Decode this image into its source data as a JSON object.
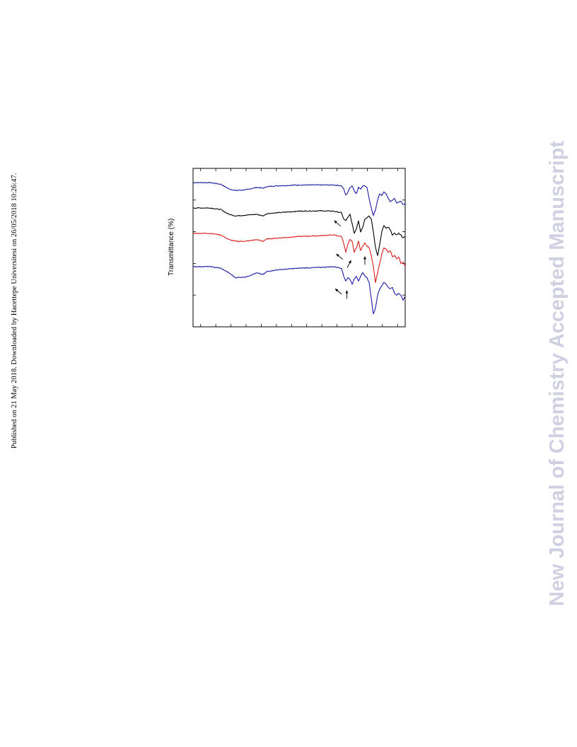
{
  "side_note": "Published on 21 May 2018. Downloaded by Hacettepe Universitesi on 26/05/2018 10:26:47.",
  "watermark": "New Journal of Chemistry Accepted Manuscript",
  "chart_data": {
    "type": "line",
    "title": "",
    "xlabel": "",
    "ylabel": "Transmittance (%)",
    "x_range": [
      0,
      100
    ],
    "y_range": [
      0,
      100
    ],
    "x_tick_count": 14,
    "y_tick_count": 5,
    "grid": false,
    "legend": "none",
    "series": [
      {
        "color": "#1a1aa6",
        "x": [
          0,
          8,
          13,
          17,
          20,
          25,
          30,
          33,
          35,
          40,
          50,
          60,
          66,
          68,
          70,
          71,
          72,
          73,
          74,
          75,
          76,
          77,
          78,
          79,
          80,
          81,
          82,
          83,
          84,
          85,
          86,
          87,
          88,
          89,
          90,
          91,
          92,
          93,
          94,
          95,
          96,
          97,
          98,
          99,
          100
        ],
        "y": [
          91,
          91,
          90,
          87,
          86,
          86.5,
          88,
          87.5,
          88.5,
          89,
          89.5,
          89.5,
          89.5,
          89.3,
          89,
          87,
          83,
          85,
          88,
          89,
          86,
          84,
          88,
          87,
          89,
          89,
          88,
          81,
          75,
          70,
          74,
          80,
          84,
          83,
          85,
          84,
          81,
          79,
          80,
          81,
          78,
          79,
          79,
          77,
          78
        ]
      },
      {
        "color": "#000000",
        "x": [
          0,
          8,
          13,
          17,
          20,
          25,
          30,
          33,
          35,
          40,
          50,
          60,
          66,
          68,
          70,
          71,
          72,
          73,
          74,
          75,
          76,
          77,
          78,
          79,
          80,
          81,
          82,
          83,
          84,
          85,
          86,
          87,
          88,
          89,
          90,
          91,
          92,
          93,
          94,
          95,
          96,
          97,
          98,
          99,
          100
        ],
        "y": [
          75,
          75,
          74,
          71,
          70,
          70.5,
          71,
          70,
          71.5,
          72,
          73,
          73.2,
          73,
          72.5,
          72,
          68,
          67,
          69,
          71,
          65,
          59,
          62,
          67,
          60,
          63,
          68,
          69,
          70,
          68,
          60,
          50,
          45,
          52,
          60,
          64,
          62,
          63,
          61,
          58,
          59,
          58,
          59,
          58,
          56,
          57
        ]
      },
      {
        "color": "#dd1a1a",
        "x": [
          0,
          8,
          13,
          17,
          20,
          25,
          30,
          33,
          35,
          40,
          50,
          60,
          66,
          68,
          70,
          71,
          72,
          73,
          74,
          75,
          76,
          77,
          78,
          79,
          80,
          81,
          82,
          83,
          84,
          85,
          86,
          87,
          88,
          89,
          90,
          91,
          92,
          93,
          94,
          95,
          96,
          97,
          98,
          99,
          100
        ],
        "y": [
          59,
          59,
          58,
          55,
          54,
          54,
          55,
          54,
          55.5,
          56,
          57,
          57.5,
          58,
          57.5,
          57,
          53,
          47,
          52,
          55,
          54,
          47,
          50,
          54,
          48,
          51,
          53,
          51,
          50,
          45,
          38,
          28,
          34,
          40,
          46,
          50,
          49,
          47,
          48,
          44,
          45,
          43,
          44,
          40,
          41,
          38
        ]
      },
      {
        "color": "#1a1aa6",
        "x": [
          0,
          8,
          13,
          17,
          20,
          25,
          30,
          33,
          35,
          40,
          50,
          60,
          66,
          68,
          70,
          71,
          72,
          73,
          74,
          75,
          76,
          77,
          78,
          79,
          80,
          81,
          82,
          83,
          84,
          85,
          86,
          87,
          88,
          89,
          90,
          91,
          92,
          93,
          94,
          95,
          96,
          97,
          98,
          99,
          100
        ],
        "y": [
          38,
          38,
          37,
          34,
          31,
          31.5,
          34,
          33,
          35,
          36,
          37,
          37.5,
          38,
          37.5,
          37,
          32,
          29,
          31,
          30,
          27,
          30,
          32,
          29,
          32,
          34,
          32,
          31,
          28,
          18,
          8,
          12,
          20,
          24,
          26,
          28,
          27,
          25,
          24,
          25,
          21,
          20,
          21,
          20,
          17,
          19
        ]
      }
    ],
    "annotations": [
      {
        "type": "arrow",
        "x": 66.5,
        "y": 67
      },
      {
        "type": "arrow",
        "x": 67.5,
        "y": 46
      },
      {
        "type": "arrow",
        "x": 74.5,
        "y": 42
      },
      {
        "type": "arrow",
        "x": 81,
        "y": 44.5
      },
      {
        "type": "arrow",
        "x": 67,
        "y": 24
      },
      {
        "type": "arrow",
        "x": 72.5,
        "y": 23
      }
    ]
  }
}
